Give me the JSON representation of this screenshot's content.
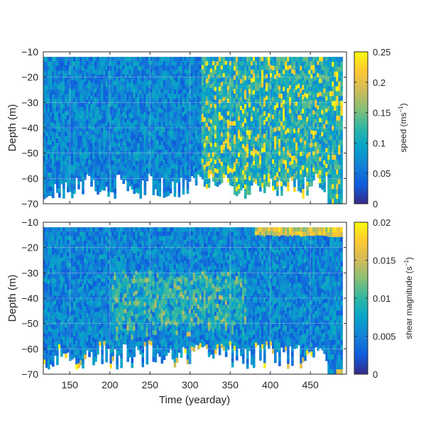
{
  "chart_data": [
    {
      "type": "heatmap",
      "title": "",
      "xlabel": "",
      "ylabel": "Depth (m)",
      "xlim": [
        117,
        495
      ],
      "ylim": [
        -70,
        -10
      ],
      "xticks": [
        150,
        200,
        250,
        300,
        350,
        400,
        450
      ],
      "xtick_labels_visible": false,
      "yticks": [
        -70,
        -60,
        -50,
        -40,
        -30,
        -20,
        -10
      ],
      "yticklabels": [
        "−70",
        "−60",
        "−50",
        "−40",
        "−30",
        "−20",
        "−10"
      ],
      "grid": true,
      "colorbar": {
        "label_base": "speed (ms",
        "label_sup": "−1",
        "label_end": ")",
        "clim": [
          0,
          0.25
        ],
        "ticks": [
          0,
          0.05,
          0.1,
          0.15,
          0.2,
          0.25
        ],
        "ticklabels": [
          "0",
          "0.05",
          "0.1",
          "0.15",
          "0.2",
          "0.25"
        ],
        "colormap": "parula"
      },
      "description_of_values": "speed mostly 0.03–0.08 ms−1 for yearday 117–310; frequent bands up to ≥0.25 from 315–490",
      "series": [
        {
          "x_range": [
            117,
            310
          ],
          "typical_value": 0.05
        },
        {
          "x_range": [
            315,
            490
          ],
          "typical_value": 0.12
        }
      ]
    },
    {
      "type": "heatmap",
      "title": "",
      "xlabel": "Time (yearday)",
      "ylabel": "Depth (m)",
      "xlim": [
        117,
        495
      ],
      "ylim": [
        -70,
        -10
      ],
      "xticks": [
        150,
        200,
        250,
        300,
        350,
        400,
        450
      ],
      "xticklabels": [
        "150",
        "200",
        "250",
        "300",
        "350",
        "400",
        "450"
      ],
      "yticks": [
        -70,
        -60,
        -50,
        -40,
        -30,
        -20,
        -10
      ],
      "yticklabels": [
        "−70",
        "−60",
        "−50",
        "−40",
        "−30",
        "−20",
        "−10"
      ],
      "grid": true,
      "colorbar": {
        "label_base": "shear magnitude (s",
        "label_sup": "−1",
        "label_end": ")",
        "clim": [
          0,
          0.02
        ],
        "ticks": [
          0,
          0.005,
          0.01,
          0.015,
          0.02
        ],
        "ticklabels": [
          "0",
          "0.005",
          "0.01",
          "0.015",
          "0.02"
        ],
        "colormap": "parula"
      },
      "series": [
        {
          "x_range": [
            117,
            490
          ],
          "typical_value": 0.005
        }
      ]
    }
  ]
}
